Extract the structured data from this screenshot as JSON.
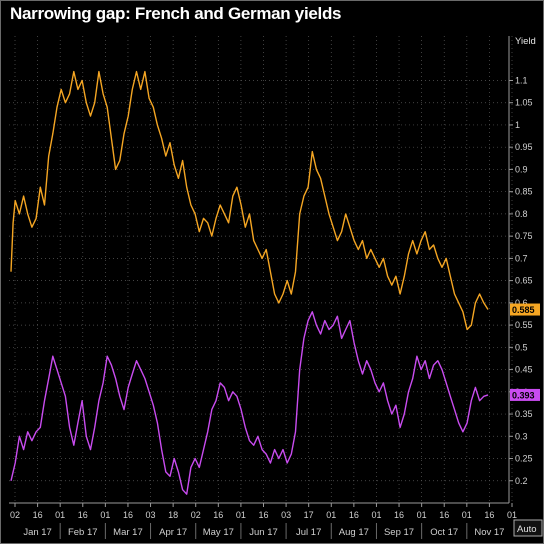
{
  "title": "Narrowing gap: French and German yields",
  "chart_data": {
    "type": "line",
    "title": "Narrowing gap: French and German yields",
    "ylabel": "Yield",
    "ylim": [
      0.15,
      1.2
    ],
    "y_ticks": [
      0.2,
      0.25,
      0.3,
      0.35,
      0.4,
      0.45,
      0.5,
      0.55,
      0.6,
      0.65,
      0.7,
      0.75,
      0.8,
      0.85,
      0.9,
      0.95,
      1,
      1.05,
      1.1
    ],
    "y_tick_labels": [
      "0.2",
      "0.25",
      "0.3",
      "0.35",
      "0.4",
      "0.45",
      "0.5",
      "0.55",
      "0.6",
      "0.65",
      "0.7",
      "0.75",
      "0.8",
      "0.85",
      "0.9",
      "0.95",
      "1",
      "1.05",
      "1.1"
    ],
    "x_day_ticks": [
      "02",
      "16",
      "01",
      "16",
      "01",
      "16",
      "03",
      "18",
      "02",
      "16",
      "01",
      "16",
      "03",
      "17",
      "01",
      "16",
      "01",
      "16",
      "01",
      "16",
      "01",
      "16",
      "01"
    ],
    "x_month_labels": [
      "Jan 17",
      "Feb 17",
      "Mar 17",
      "Apr 17",
      "May 17",
      "Jun 17",
      "Jul 17",
      "Aug 17",
      "Sep 17",
      "Oct 17",
      "Nov 17"
    ],
    "auto_label": "Auto",
    "series": [
      {
        "color": "#f5a623",
        "last_value_label": "0.585",
        "points": [
          [
            0,
            0.67
          ],
          [
            0.5,
            0.78
          ],
          [
            1,
            0.83
          ],
          [
            2,
            0.8
          ],
          [
            3,
            0.84
          ],
          [
            4,
            0.8
          ],
          [
            5,
            0.77
          ],
          [
            6,
            0.79
          ],
          [
            7,
            0.86
          ],
          [
            8,
            0.82
          ],
          [
            9,
            0.93
          ],
          [
            10,
            0.98
          ],
          [
            11,
            1.04
          ],
          [
            12,
            1.08
          ],
          [
            13,
            1.05
          ],
          [
            14,
            1.07
          ],
          [
            15,
            1.12
          ],
          [
            16,
            1.08
          ],
          [
            17,
            1.1
          ],
          [
            18,
            1.05
          ],
          [
            19,
            1.02
          ],
          [
            20,
            1.05
          ],
          [
            21,
            1.12
          ],
          [
            22,
            1.07
          ],
          [
            23,
            1.04
          ],
          [
            24,
            0.97
          ],
          [
            25,
            0.9
          ],
          [
            26,
            0.92
          ],
          [
            27,
            0.98
          ],
          [
            28,
            1.02
          ],
          [
            29,
            1.08
          ],
          [
            30,
            1.12
          ],
          [
            31,
            1.08
          ],
          [
            32,
            1.12
          ],
          [
            33,
            1.06
          ],
          [
            34,
            1.04
          ],
          [
            35,
            1.0
          ],
          [
            36,
            0.97
          ],
          [
            37,
            0.93
          ],
          [
            38,
            0.96
          ],
          [
            39,
            0.91
          ],
          [
            40,
            0.88
          ],
          [
            41,
            0.92
          ],
          [
            42,
            0.86
          ],
          [
            43,
            0.82
          ],
          [
            44,
            0.8
          ],
          [
            45,
            0.76
          ],
          [
            46,
            0.79
          ],
          [
            47,
            0.78
          ],
          [
            48,
            0.75
          ],
          [
            49,
            0.79
          ],
          [
            50,
            0.82
          ],
          [
            51,
            0.8
          ],
          [
            52,
            0.78
          ],
          [
            53,
            0.84
          ],
          [
            54,
            0.86
          ],
          [
            55,
            0.82
          ],
          [
            56,
            0.77
          ],
          [
            57,
            0.8
          ],
          [
            58,
            0.74
          ],
          [
            59,
            0.72
          ],
          [
            60,
            0.7
          ],
          [
            61,
            0.72
          ],
          [
            62,
            0.67
          ],
          [
            63,
            0.62
          ],
          [
            64,
            0.6
          ],
          [
            65,
            0.62
          ],
          [
            66,
            0.65
          ],
          [
            67,
            0.62
          ],
          [
            68,
            0.67
          ],
          [
            69,
            0.8
          ],
          [
            70,
            0.84
          ],
          [
            71,
            0.86
          ],
          [
            72,
            0.94
          ],
          [
            73,
            0.9
          ],
          [
            74,
            0.88
          ],
          [
            75,
            0.84
          ],
          [
            76,
            0.8
          ],
          [
            77,
            0.77
          ],
          [
            78,
            0.74
          ],
          [
            79,
            0.76
          ],
          [
            80,
            0.8
          ],
          [
            81,
            0.77
          ],
          [
            82,
            0.74
          ],
          [
            83,
            0.72
          ],
          [
            84,
            0.74
          ],
          [
            85,
            0.7
          ],
          [
            86,
            0.72
          ],
          [
            87,
            0.7
          ],
          [
            88,
            0.68
          ],
          [
            89,
            0.7
          ],
          [
            90,
            0.66
          ],
          [
            91,
            0.64
          ],
          [
            92,
            0.66
          ],
          [
            93,
            0.62
          ],
          [
            94,
            0.66
          ],
          [
            95,
            0.71
          ],
          [
            96,
            0.74
          ],
          [
            97,
            0.71
          ],
          [
            98,
            0.74
          ],
          [
            99,
            0.76
          ],
          [
            100,
            0.72
          ],
          [
            101,
            0.73
          ],
          [
            102,
            0.7
          ],
          [
            103,
            0.68
          ],
          [
            104,
            0.7
          ],
          [
            105,
            0.66
          ],
          [
            106,
            0.62
          ],
          [
            107,
            0.6
          ],
          [
            108,
            0.58
          ],
          [
            109,
            0.54
          ],
          [
            110,
            0.55
          ],
          [
            111,
            0.6
          ],
          [
            112,
            0.62
          ],
          [
            113,
            0.6
          ],
          [
            114,
            0.585
          ]
        ]
      },
      {
        "color": "#c94cf0",
        "last_value_label": "0.393",
        "points": [
          [
            0,
            0.2
          ],
          [
            1,
            0.24
          ],
          [
            2,
            0.3
          ],
          [
            3,
            0.27
          ],
          [
            4,
            0.31
          ],
          [
            5,
            0.29
          ],
          [
            6,
            0.31
          ],
          [
            7,
            0.32
          ],
          [
            8,
            0.38
          ],
          [
            9,
            0.43
          ],
          [
            10,
            0.48
          ],
          [
            11,
            0.45
          ],
          [
            12,
            0.42
          ],
          [
            13,
            0.39
          ],
          [
            14,
            0.32
          ],
          [
            15,
            0.28
          ],
          [
            16,
            0.33
          ],
          [
            17,
            0.38
          ],
          [
            18,
            0.3
          ],
          [
            19,
            0.27
          ],
          [
            20,
            0.32
          ],
          [
            21,
            0.38
          ],
          [
            22,
            0.42
          ],
          [
            23,
            0.48
          ],
          [
            24,
            0.46
          ],
          [
            25,
            0.43
          ],
          [
            26,
            0.39
          ],
          [
            27,
            0.36
          ],
          [
            28,
            0.41
          ],
          [
            29,
            0.44
          ],
          [
            30,
            0.47
          ],
          [
            31,
            0.45
          ],
          [
            32,
            0.43
          ],
          [
            33,
            0.4
          ],
          [
            34,
            0.37
          ],
          [
            35,
            0.33
          ],
          [
            36,
            0.27
          ],
          [
            37,
            0.22
          ],
          [
            38,
            0.21
          ],
          [
            39,
            0.25
          ],
          [
            40,
            0.22
          ],
          [
            41,
            0.18
          ],
          [
            42,
            0.17
          ],
          [
            43,
            0.23
          ],
          [
            44,
            0.25
          ],
          [
            45,
            0.23
          ],
          [
            46,
            0.27
          ],
          [
            47,
            0.31
          ],
          [
            48,
            0.36
          ],
          [
            49,
            0.38
          ],
          [
            50,
            0.42
          ],
          [
            51,
            0.41
          ],
          [
            52,
            0.38
          ],
          [
            53,
            0.4
          ],
          [
            54,
            0.39
          ],
          [
            55,
            0.36
          ],
          [
            56,
            0.32
          ],
          [
            57,
            0.29
          ],
          [
            58,
            0.28
          ],
          [
            59,
            0.3
          ],
          [
            60,
            0.27
          ],
          [
            61,
            0.26
          ],
          [
            62,
            0.24
          ],
          [
            63,
            0.27
          ],
          [
            64,
            0.25
          ],
          [
            65,
            0.27
          ],
          [
            66,
            0.24
          ],
          [
            67,
            0.26
          ],
          [
            68,
            0.31
          ],
          [
            69,
            0.45
          ],
          [
            70,
            0.52
          ],
          [
            71,
            0.56
          ],
          [
            72,
            0.58
          ],
          [
            73,
            0.55
          ],
          [
            74,
            0.53
          ],
          [
            75,
            0.56
          ],
          [
            76,
            0.54
          ],
          [
            77,
            0.55
          ],
          [
            78,
            0.57
          ],
          [
            79,
            0.52
          ],
          [
            80,
            0.54
          ],
          [
            81,
            0.56
          ],
          [
            82,
            0.51
          ],
          [
            83,
            0.47
          ],
          [
            84,
            0.44
          ],
          [
            85,
            0.47
          ],
          [
            86,
            0.45
          ],
          [
            87,
            0.42
          ],
          [
            88,
            0.4
          ],
          [
            89,
            0.42
          ],
          [
            90,
            0.38
          ],
          [
            91,
            0.35
          ],
          [
            92,
            0.37
          ],
          [
            93,
            0.32
          ],
          [
            94,
            0.35
          ],
          [
            95,
            0.4
          ],
          [
            96,
            0.43
          ],
          [
            97,
            0.48
          ],
          [
            98,
            0.45
          ],
          [
            99,
            0.47
          ],
          [
            100,
            0.43
          ],
          [
            101,
            0.46
          ],
          [
            102,
            0.47
          ],
          [
            103,
            0.45
          ],
          [
            104,
            0.42
          ],
          [
            105,
            0.39
          ],
          [
            106,
            0.36
          ],
          [
            107,
            0.33
          ],
          [
            108,
            0.31
          ],
          [
            109,
            0.33
          ],
          [
            110,
            0.38
          ],
          [
            111,
            0.41
          ],
          [
            112,
            0.38
          ],
          [
            113,
            0.39
          ],
          [
            114,
            0.393
          ]
        ]
      }
    ]
  }
}
